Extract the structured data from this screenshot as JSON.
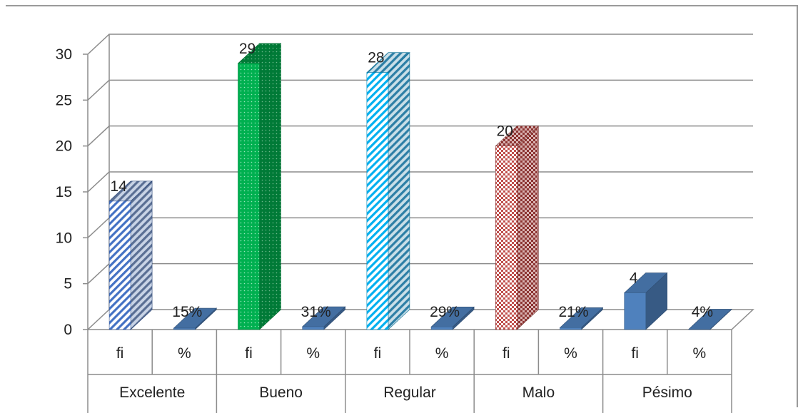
{
  "chart_data": {
    "type": "bar",
    "style": "3d-clustered-column",
    "title": "",
    "xlabel": "",
    "ylabel": "",
    "ylim": [
      0,
      30
    ],
    "yticks": [
      0,
      5,
      10,
      15,
      20,
      25,
      30
    ],
    "grid": true,
    "legend": "none",
    "groups": [
      {
        "name": "Excelente",
        "bars": [
          {
            "sub": "fi",
            "value": 14,
            "label": "14",
            "color": "#4472C4",
            "pattern": "diagonal-stripes"
          },
          {
            "sub": "%",
            "value": 0.15,
            "label": "15%",
            "color": "#4F81BD",
            "pattern": "solid"
          }
        ]
      },
      {
        "name": "Bueno",
        "bars": [
          {
            "sub": "fi",
            "value": 29,
            "label": "29",
            "color": "#00B050",
            "pattern": "dots"
          },
          {
            "sub": "%",
            "value": 0.31,
            "label": "31%",
            "color": "#4F81BD",
            "pattern": "solid"
          }
        ]
      },
      {
        "name": "Regular",
        "bars": [
          {
            "sub": "fi",
            "value": 28,
            "label": "28",
            "color": "#00B0F0",
            "pattern": "diagonal-stripes"
          },
          {
            "sub": "%",
            "value": 0.29,
            "label": "29%",
            "color": "#4F81BD",
            "pattern": "solid"
          }
        ]
      },
      {
        "name": "Malo",
        "bars": [
          {
            "sub": "fi",
            "value": 20,
            "label": "20",
            "color": "#C0504D",
            "pattern": "checker"
          },
          {
            "sub": "%",
            "value": 0.21,
            "label": "21%",
            "color": "#4F81BD",
            "pattern": "solid"
          }
        ]
      },
      {
        "name": "Pésimo",
        "bars": [
          {
            "sub": "fi",
            "value": 4,
            "label": "4",
            "color": "#4F81BD",
            "pattern": "solid"
          },
          {
            "sub": "%",
            "value": 0.04,
            "label": "4%",
            "color": "#4F81BD",
            "pattern": "solid"
          }
        ]
      }
    ]
  }
}
